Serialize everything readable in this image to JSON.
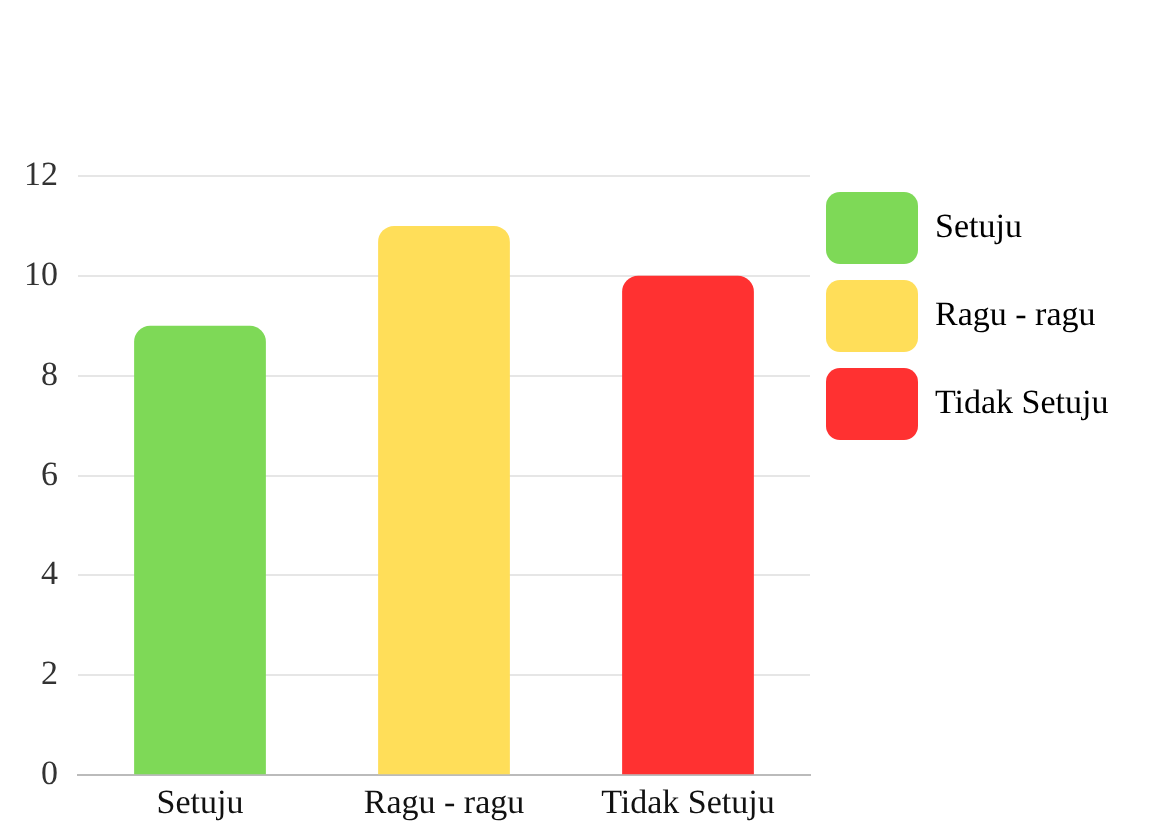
{
  "chart_data": {
    "type": "bar",
    "categories": [
      "Setuju",
      "Ragu - ragu",
      "Tidak Setuju"
    ],
    "series": [
      {
        "name": "Setuju",
        "color": "#7ed957",
        "values": [
          9,
          null,
          null
        ]
      },
      {
        "name": "Ragu - ragu",
        "color": "#ffde59",
        "values": [
          null,
          11,
          null
        ]
      },
      {
        "name": "Tidak Setuju",
        "color": "#ff3131",
        "values": [
          null,
          null,
          10
        ]
      }
    ],
    "ylim": [
      0,
      12
    ],
    "yticks": [
      0,
      2,
      4,
      6,
      8,
      10,
      12
    ],
    "grid": "y",
    "legend": "top right"
  }
}
